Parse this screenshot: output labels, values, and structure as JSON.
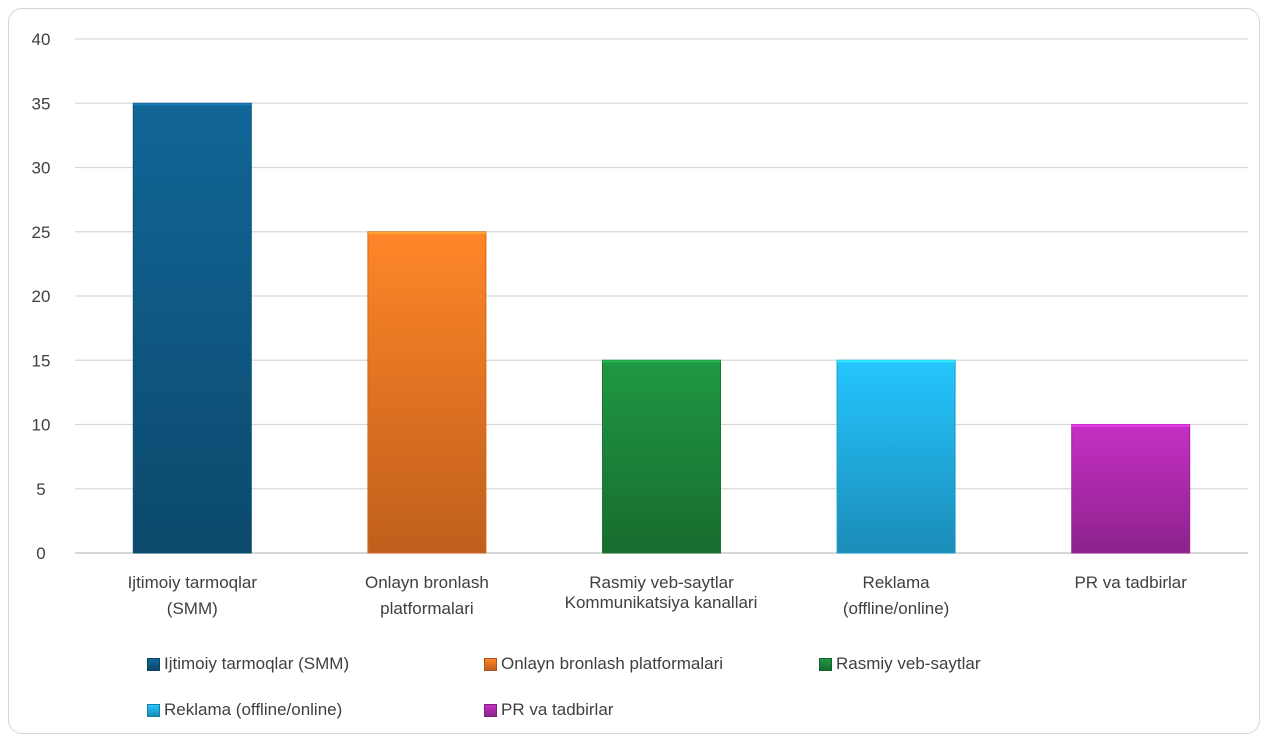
{
  "chart_data": {
    "type": "bar",
    "categories": [
      "Ijtimoiy tarmoqlar (SMM)",
      "Onlayn bronlash platformalari",
      "Rasmiy veb-saytlar",
      "Reklama (offline/online)",
      "PR va tadbirlar"
    ],
    "category_labels": [
      [
        "Ijtimoiy tarmoqlar",
        "(SMM)"
      ],
      [
        "Onlayn bronlash",
        "platformalari"
      ],
      [
        "Rasmiy veb-saytlar"
      ],
      [
        "Reklama",
        "(offline/online)"
      ],
      [
        "PR va tadbirlar"
      ]
    ],
    "values": [
      35,
      25,
      15,
      15,
      10
    ],
    "colors": [
      "#0f5d8a",
      "#f57a24",
      "#1d8a3c",
      "#22b4ec",
      "#b32cb3"
    ],
    "title": "",
    "xlabel": "Kommunikatsiya kanallari",
    "ylabel": "",
    "ylim": [
      0,
      40
    ],
    "yticks": [
      0,
      5,
      10,
      15,
      20,
      25,
      30,
      35,
      40
    ],
    "grid": true,
    "legend_position": "bottom",
    "legend": [
      "Ijtimoiy tarmoqlar (SMM)",
      "Onlayn bronlash platformalari",
      "Rasmiy veb-saytlar",
      "Reklama (offline/online)",
      "PR va tadbirlar"
    ]
  }
}
